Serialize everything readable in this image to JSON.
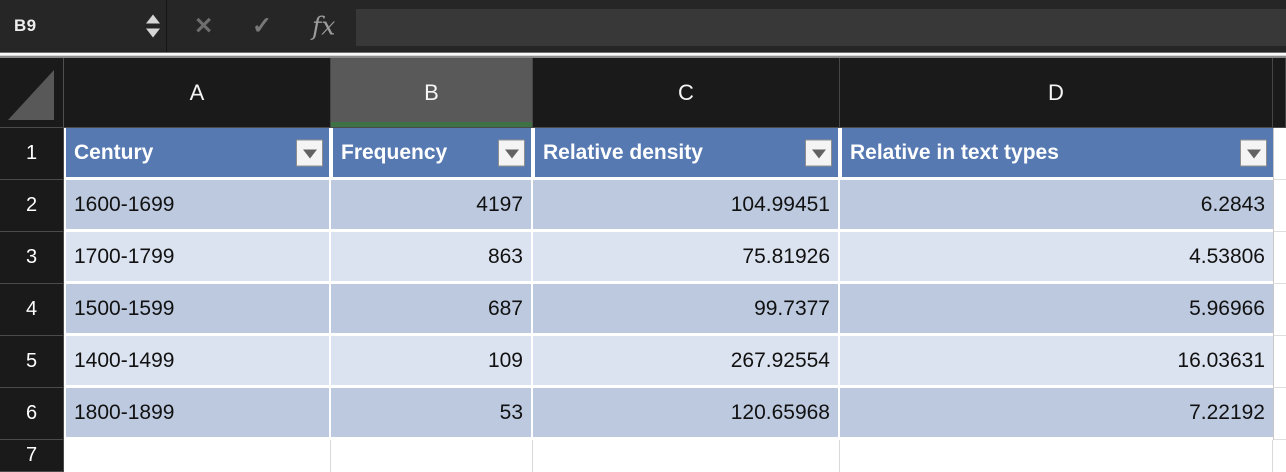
{
  "formula_bar": {
    "cell_reference": "B9",
    "formula_content": "",
    "cancel_glyph": "✕",
    "confirm_glyph": "✓",
    "fx_glyph": "fx"
  },
  "columns": {
    "letters": [
      "A",
      "B",
      "C",
      "D"
    ],
    "selected": "B"
  },
  "rows": {
    "numbers": [
      "1",
      "2",
      "3",
      "4",
      "5",
      "6",
      "7"
    ]
  },
  "table": {
    "header": [
      "Century",
      "Frequency",
      "Relative density",
      "Relative in text types"
    ],
    "data": [
      [
        "1600-1699",
        "4197",
        "104.99451",
        "6.2843"
      ],
      [
        "1700-1799",
        "863",
        "75.81926",
        "4.53806"
      ],
      [
        "1500-1599",
        "687",
        "99.7377",
        "5.96966"
      ],
      [
        "1400-1499",
        "109",
        "267.92554",
        "16.03631"
      ],
      [
        "1800-1899",
        "53",
        "120.65968",
        "7.22192"
      ]
    ]
  },
  "colors": {
    "header_fill": "#5679B2",
    "band_dark": "#BCC9DF",
    "band_light": "#DCE3F0",
    "selected_column_fill": "#595959",
    "selection_accent_green": "#3E7144",
    "table_handle_blue": "#4C5FA8",
    "chrome_background": "#262626"
  }
}
